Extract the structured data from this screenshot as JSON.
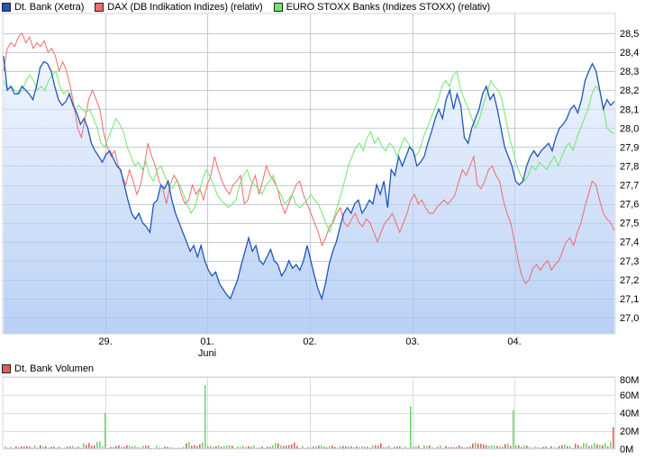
{
  "legend": [
    {
      "label": "Dt. Bank (Xetra)",
      "color": "#1f56b8"
    },
    {
      "label": "DAX (DB Indikation Indizes) (relativ)",
      "color": "#f26a6a"
    },
    {
      "label": "EURO STOXX Banks (Indizes STOXX) (relativ)",
      "color": "#6de86d"
    }
  ],
  "volume_legend": {
    "label": "Dt. Bank Volumen",
    "color": "#d96060"
  },
  "chart_data": [
    {
      "type": "line",
      "title": "",
      "xlabel": "",
      "ylabel": "",
      "x_ticks": [
        "29.",
        "01.",
        "02.",
        "03.",
        "04."
      ],
      "x_tick_sublabels": {
        "01.": "Juni"
      },
      "y_ticks": [
        "28,5",
        "28,4",
        "28,3",
        "28,2",
        "28,1",
        "28,0",
        "27,9",
        "27,8",
        "27,7",
        "27,6",
        "27,5",
        "27,4",
        "27,3",
        "27,2",
        "27,1",
        "27,0"
      ],
      "ylim": [
        26.92,
        28.6
      ],
      "grid": true,
      "legend_position": "top",
      "series": [
        {
          "name": "Dt. Bank (Xetra)",
          "color": "#1f56b8",
          "fill": true,
          "values": [
            28.38,
            28.2,
            28.22,
            28.18,
            28.18,
            28.22,
            28.2,
            28.18,
            28.15,
            28.22,
            28.32,
            28.35,
            28.34,
            28.3,
            28.22,
            28.15,
            28.12,
            28.14,
            28.18,
            28.12,
            28.08,
            28.02,
            28.05,
            28.0,
            27.92,
            27.88,
            27.85,
            27.82,
            27.86,
            27.88,
            27.84,
            27.8,
            27.78,
            27.7,
            27.62,
            27.55,
            27.52,
            27.55,
            27.5,
            27.48,
            27.45,
            27.6,
            27.62,
            27.7,
            27.68,
            27.72,
            27.62,
            27.55,
            27.5,
            27.45,
            27.4,
            27.35,
            27.38,
            27.32,
            27.38,
            27.3,
            27.25,
            27.22,
            27.24,
            27.18,
            27.15,
            27.12,
            27.1,
            27.15,
            27.2,
            27.28,
            27.35,
            27.42,
            27.35,
            27.38,
            27.3,
            27.28,
            27.32,
            27.36,
            27.3,
            27.28,
            27.22,
            27.25,
            27.3,
            27.26,
            27.28,
            27.25,
            27.3,
            27.38,
            27.3,
            27.22,
            27.15,
            27.1,
            27.18,
            27.28,
            27.35,
            27.4,
            27.48,
            27.55,
            27.58,
            27.55,
            27.6,
            27.62,
            27.55,
            27.58,
            27.62,
            27.6,
            27.7,
            27.65,
            27.72,
            27.58,
            27.78,
            27.75,
            27.85,
            27.8,
            27.85,
            27.9,
            27.88,
            27.8,
            27.82,
            27.85,
            27.92,
            27.98,
            28.05,
            28.1,
            28.05,
            28.15,
            28.2,
            28.1,
            28.18,
            28.12,
            27.95,
            27.92,
            28.0,
            28.05,
            28.1,
            28.18,
            28.22,
            28.15,
            28.18,
            28.1,
            28.0,
            27.9,
            27.85,
            27.8,
            27.72,
            27.7,
            27.72,
            27.8,
            27.85,
            27.88,
            27.85,
            27.88,
            27.9,
            27.92,
            27.88,
            27.95,
            28.0,
            28.02,
            28.05,
            28.1,
            28.12,
            28.08,
            28.15,
            28.25,
            28.3,
            28.34,
            28.3,
            28.2,
            28.1,
            28.15,
            28.12,
            28.14
          ]
        },
        {
          "name": "DAX (DB Indikation Indizes) (relativ)",
          "color": "#f26a6a",
          "fill": false,
          "values": [
            28.3,
            28.42,
            28.45,
            28.43,
            28.48,
            28.5,
            28.45,
            28.48,
            28.42,
            28.45,
            28.43,
            28.46,
            28.4,
            28.42,
            28.38,
            28.3,
            28.35,
            28.3,
            28.22,
            28.12,
            28.0,
            27.95,
            28.05,
            28.15,
            28.2,
            28.15,
            28.1,
            27.98,
            27.9,
            27.85,
            27.88,
            27.8,
            27.75,
            27.7,
            27.78,
            27.72,
            27.65,
            27.7,
            27.8,
            27.92,
            27.85,
            27.8,
            27.72,
            27.68,
            27.6,
            27.7,
            27.75,
            27.72,
            27.65,
            27.6,
            27.62,
            27.7,
            27.65,
            27.68,
            27.62,
            27.7,
            27.75,
            27.85,
            27.78,
            27.72,
            27.68,
            27.65,
            27.7,
            27.72,
            27.75,
            27.6,
            27.62,
            27.7,
            27.75,
            27.65,
            27.72,
            27.8,
            27.75,
            27.72,
            27.68,
            27.6,
            27.55,
            27.6,
            27.65,
            27.7,
            27.72,
            27.65,
            27.6,
            27.55,
            27.5,
            27.45,
            27.38,
            27.42,
            27.48,
            27.5,
            27.55,
            27.58,
            27.5,
            27.48,
            27.52,
            27.55,
            27.5,
            27.48,
            27.52,
            27.5,
            27.45,
            27.4,
            27.45,
            27.5,
            27.52,
            27.55,
            27.5,
            27.45,
            27.5,
            27.55,
            27.62,
            27.65,
            27.6,
            27.62,
            27.58,
            27.55,
            27.55,
            27.58,
            27.6,
            27.62,
            27.6,
            27.62,
            27.65,
            27.72,
            27.78,
            27.75,
            27.8,
            27.85,
            27.7,
            27.68,
            27.72,
            27.78,
            27.8,
            27.75,
            27.72,
            27.62,
            27.55,
            27.5,
            27.4,
            27.3,
            27.22,
            27.18,
            27.2,
            27.26,
            27.28,
            27.25,
            27.28,
            27.3,
            27.25,
            27.28,
            27.3,
            27.35,
            27.4,
            27.42,
            27.38,
            27.45,
            27.5,
            27.58,
            27.65,
            27.72,
            27.7,
            27.62,
            27.55,
            27.52,
            27.5,
            27.46
          ]
        },
        {
          "name": "EURO STOXX Banks (Indizes STOXX) (relativ)",
          "color": "#6de86d",
          "fill": false,
          "values": [
            28.25,
            28.2,
            28.22,
            28.2,
            28.18,
            28.2,
            28.25,
            28.28,
            28.25,
            28.2,
            28.22,
            28.2,
            28.25,
            28.28,
            28.3,
            28.22,
            28.18,
            28.2,
            28.15,
            28.1,
            28.12,
            28.1,
            28.08,
            28.1,
            28.05,
            28.0,
            27.92,
            27.9,
            27.95,
            28.0,
            28.05,
            28.02,
            27.98,
            27.9,
            27.85,
            27.8,
            27.82,
            27.78,
            27.82,
            27.75,
            27.72,
            27.78,
            27.8,
            27.75,
            27.7,
            27.68,
            27.72,
            27.7,
            27.65,
            27.6,
            27.55,
            27.58,
            27.65,
            27.72,
            27.78,
            27.75,
            27.7,
            27.65,
            27.62,
            27.6,
            27.58,
            27.6,
            27.62,
            27.7,
            27.75,
            27.78,
            27.72,
            27.7,
            27.68,
            27.65,
            27.7,
            27.72,
            27.75,
            27.68,
            27.65,
            27.6,
            27.62,
            27.65,
            27.6,
            27.58,
            27.6,
            27.62,
            27.65,
            27.62,
            27.6,
            27.55,
            27.5,
            27.45,
            27.52,
            27.58,
            27.65,
            27.72,
            27.8,
            27.85,
            27.9,
            27.92,
            27.88,
            27.95,
            27.98,
            27.92,
            27.95,
            27.9,
            27.88,
            27.92,
            27.9,
            27.85,
            27.9,
            27.95,
            27.92,
            27.88,
            27.85,
            27.88,
            27.95,
            28.0,
            28.05,
            28.1,
            28.15,
            28.22,
            28.25,
            28.22,
            28.28,
            28.3,
            28.2,
            28.15,
            28.1,
            28.05,
            28.0,
            28.05,
            28.12,
            28.18,
            28.25,
            28.22,
            28.2,
            28.15,
            28.05,
            27.95,
            27.88,
            27.8,
            27.75,
            27.72,
            27.75,
            27.8,
            27.78,
            27.82,
            27.8,
            27.78,
            27.82,
            27.85,
            27.8,
            27.85,
            27.9,
            27.92,
            27.88,
            27.95,
            28.0,
            28.05,
            28.1,
            28.18,
            28.22,
            28.2,
            28.12,
            28.0,
            27.98,
            27.97
          ]
        }
      ]
    },
    {
      "type": "bar",
      "title": "Dt. Bank Volumen",
      "xlabel": "",
      "ylabel": "",
      "y_ticks": [
        "80M",
        "60M",
        "40M",
        "20M",
        "0M"
      ],
      "ylim": [
        0,
        80
      ],
      "grid": true,
      "bar_colors": {
        "up": "#6dd66d",
        "down": "#d96060"
      },
      "spikes": [
        {
          "x_position": "end of 28.",
          "value_M": 40,
          "color": "green"
        },
        {
          "x_position": "end of 31.",
          "value_M": 71,
          "color": "green"
        },
        {
          "x_position": "end of 01.",
          "value_M": 25,
          "color": "green"
        },
        {
          "x_position": "end of 02.",
          "value_M": 47,
          "color": "green"
        },
        {
          "x_position": "end of 03.",
          "value_M": 43,
          "color": "green"
        },
        {
          "x_position": "last",
          "value_M": 24,
          "color": "red"
        }
      ],
      "typical_value_M": "1-8"
    }
  ]
}
